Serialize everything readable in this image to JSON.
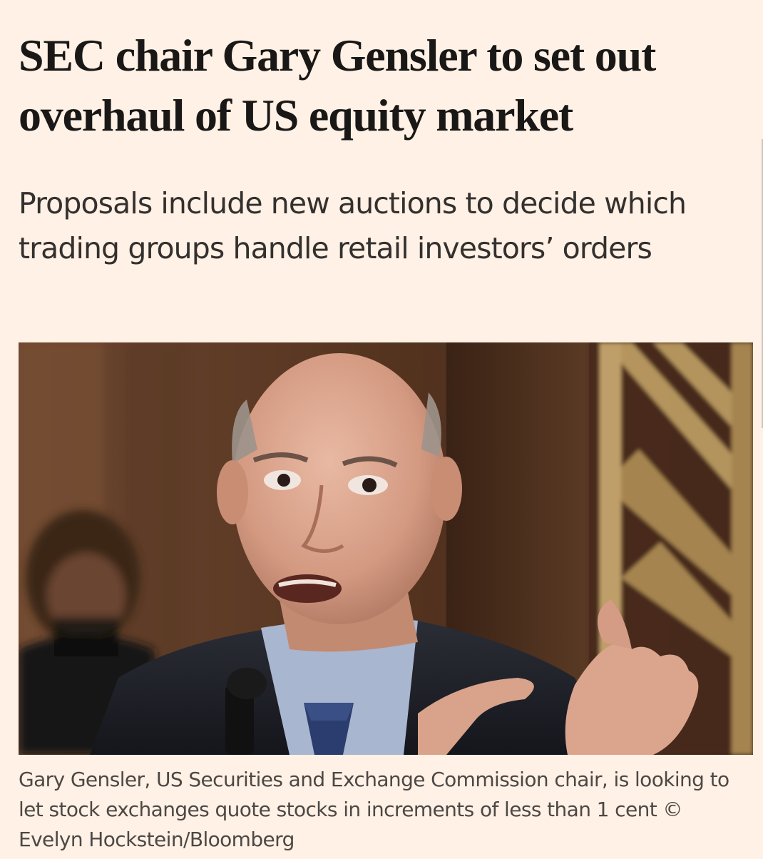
{
  "article": {
    "headline": "SEC chair Gary Gensler to set out overhaul of US equity market",
    "standfirst": "Proposals include new auctions to decide which trading groups handle retail investors’ orders",
    "image": {
      "caption": "Gary Gensler, US Securities and Exchange Commission chair, is looking to let stock exchanges quote stocks in increments of less than 1 cent © Evelyn Hockstein/Bloomberg"
    }
  },
  "colors": {
    "page_background": "#fff1e5",
    "headline_text": "#1a1817",
    "body_text": "#33302e",
    "caption_text": "#4d4845"
  }
}
